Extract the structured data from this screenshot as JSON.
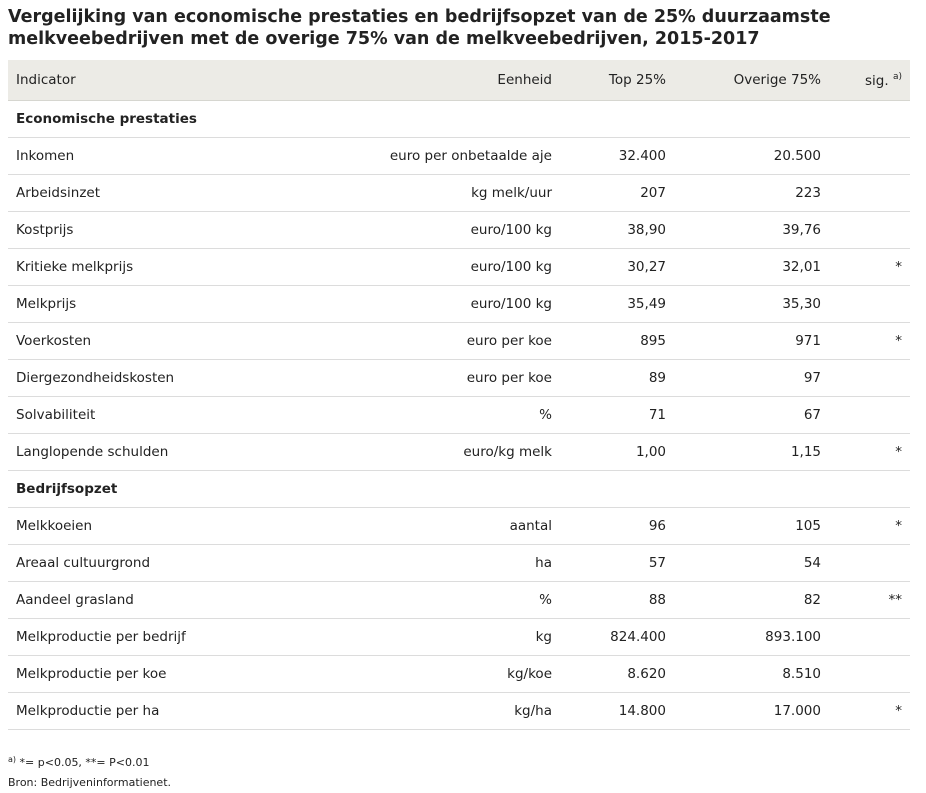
{
  "title": "Vergelijking van economische prestaties en bedrijfsopzet van de 25% duurzaamste melkveebedrijven met de overige 75% van de melkveebedrijven, 2015-2017",
  "header": {
    "indicator": "Indicator",
    "unit": "Eenheid",
    "top": "Top 25%",
    "other": "Overige 75%",
    "sig": "sig.",
    "sig_sup": "a)"
  },
  "sections": [
    {
      "title": "Economische prestaties",
      "rows": [
        {
          "indicator": "Inkomen",
          "unit": "euro per onbetaalde aje",
          "top": "32.400",
          "other": "20.500",
          "sig": ""
        },
        {
          "indicator": "Arbeidsinzet",
          "unit": "kg melk/uur",
          "top": "207",
          "other": "223",
          "sig": ""
        },
        {
          "indicator": "Kostprijs",
          "unit": "euro/100 kg",
          "top": "38,90",
          "other": "39,76",
          "sig": ""
        },
        {
          "indicator": "Kritieke melkprijs",
          "unit": "euro/100 kg",
          "top": "30,27",
          "other": "32,01",
          "sig": "*"
        },
        {
          "indicator": "Melkprijs",
          "unit": "euro/100 kg",
          "top": "35,49",
          "other": "35,30",
          "sig": ""
        },
        {
          "indicator": "Voerkosten",
          "unit": "euro per koe",
          "top": "895",
          "other": "971",
          "sig": "*"
        },
        {
          "indicator": "Diergezondheidskosten",
          "unit": "euro per koe",
          "top": "89",
          "other": "97",
          "sig": ""
        },
        {
          "indicator": "Solvabiliteit",
          "unit": "%",
          "top": "71",
          "other": "67",
          "sig": ""
        },
        {
          "indicator": "Langlopende schulden",
          "unit": "euro/kg melk",
          "top": "1,00",
          "other": "1,15",
          "sig": "*"
        }
      ]
    },
    {
      "title": "Bedrijfsopzet",
      "rows": [
        {
          "indicator": "Melkkoeien",
          "unit": "aantal",
          "top": "96",
          "other": "105",
          "sig": "*"
        },
        {
          "indicator": "Areaal cultuurgrond",
          "unit": "ha",
          "top": "57",
          "other": "54",
          "sig": ""
        },
        {
          "indicator": "Aandeel grasland",
          "unit": "%",
          "top": "88",
          "other": "82",
          "sig": "**"
        },
        {
          "indicator": "Melkproductie per bedrijf",
          "unit": "kg",
          "top": "824.400",
          "other": "893.100",
          "sig": ""
        },
        {
          "indicator": "Melkproductie per koe",
          "unit": "kg/koe",
          "top": "8.620",
          "other": "8.510",
          "sig": ""
        },
        {
          "indicator": "Melkproductie per ha",
          "unit": "kg/ha",
          "top": "14.800",
          "other": "17.000",
          "sig": "*"
        }
      ]
    }
  ],
  "footnote": {
    "sup": "a)",
    "text": "*= p<0.05, **= P<0.01"
  },
  "source": "Bron: Bedrijveninformatienet."
}
